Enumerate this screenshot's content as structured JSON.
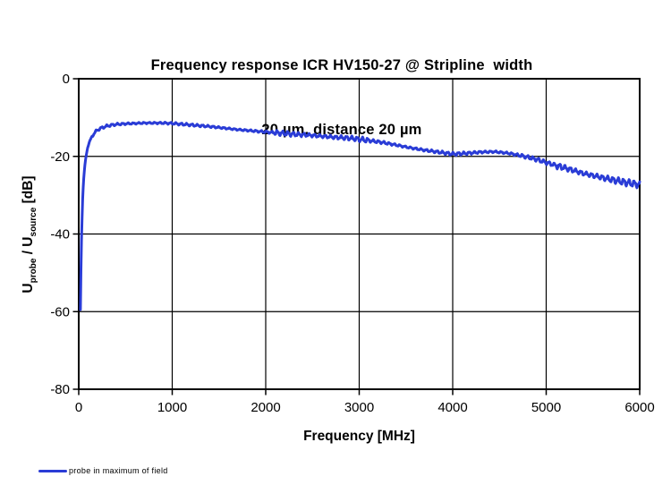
{
  "title": {
    "line1": "Frequency response ICR HV150-27 @ Stripline  width",
    "line2": "20 µm, distance 20 µm"
  },
  "y_axis": {
    "label_parts": {
      "u1": "U",
      "sub1": "probe",
      "mid": " / U",
      "sub2": "source",
      "unit": " [dB]"
    },
    "ticks": [
      0,
      -20,
      -40,
      -60,
      -80
    ]
  },
  "x_axis": {
    "label": "Frequency [MHz]",
    "ticks": [
      0,
      1000,
      2000,
      3000,
      4000,
      5000,
      6000
    ]
  },
  "legend": {
    "items": [
      {
        "label": "probe in maximum of field",
        "color": "#2a3cd6"
      }
    ]
  },
  "colors": {
    "line": "#2a3cd6",
    "axis": "#000000",
    "grid": "#000000",
    "background": "#ffffff"
  },
  "chart_data": {
    "type": "line",
    "title": "Frequency response ICR HV150-27 @ Stripline width 20 µm, distance 20 µm",
    "xlabel": "Frequency [MHz]",
    "ylabel": "Uprobe / Usource [dB]",
    "xlim": [
      0,
      6000
    ],
    "ylim": [
      -80,
      0
    ],
    "x_ticks": [
      0,
      1000,
      2000,
      3000,
      4000,
      5000,
      6000
    ],
    "y_ticks": [
      0,
      -20,
      -40,
      -60,
      -80
    ],
    "grid": true,
    "legend_position": "bottom-left",
    "series": [
      {
        "name": "probe in maximum of field",
        "color": "#2a3cd6",
        "points": [
          [
            18,
            -59.5
          ],
          [
            22,
            -52
          ],
          [
            27,
            -45
          ],
          [
            33,
            -38
          ],
          [
            40,
            -32
          ],
          [
            50,
            -27
          ],
          [
            62,
            -23
          ],
          [
            78,
            -20
          ],
          [
            95,
            -17.8
          ],
          [
            115,
            -16.2
          ],
          [
            140,
            -14.9
          ],
          [
            170,
            -13.9
          ],
          [
            200,
            -13.2
          ],
          [
            250,
            -12.6
          ],
          [
            300,
            -12.2
          ],
          [
            360,
            -11.9
          ],
          [
            430,
            -11.7
          ],
          [
            500,
            -11.6
          ],
          [
            600,
            -11.5
          ],
          [
            700,
            -11.4
          ],
          [
            800,
            -11.4
          ],
          [
            900,
            -11.4
          ],
          [
            1000,
            -11.5
          ],
          [
            1100,
            -11.7
          ],
          [
            1250,
            -12.0
          ],
          [
            1400,
            -12.3
          ],
          [
            1550,
            -12.7
          ],
          [
            1700,
            -13.1
          ],
          [
            1850,
            -13.4
          ],
          [
            2000,
            -13.7
          ],
          [
            2150,
            -14.0
          ],
          [
            2300,
            -14.3
          ],
          [
            2450,
            -14.5
          ],
          [
            2600,
            -14.8
          ],
          [
            2750,
            -15.1
          ],
          [
            2900,
            -15.3
          ],
          [
            3000,
            -15.6
          ],
          [
            3100,
            -15.9
          ],
          [
            3250,
            -16.4
          ],
          [
            3400,
            -17.1
          ],
          [
            3550,
            -17.8
          ],
          [
            3700,
            -18.4
          ],
          [
            3850,
            -18.9
          ],
          [
            4000,
            -19.4
          ],
          [
            4150,
            -19.2
          ],
          [
            4300,
            -18.9
          ],
          [
            4450,
            -18.8
          ],
          [
            4600,
            -19.2
          ],
          [
            4750,
            -19.9
          ],
          [
            4900,
            -20.8
          ],
          [
            5000,
            -21.6
          ],
          [
            5100,
            -22.3
          ],
          [
            5250,
            -23.3
          ],
          [
            5400,
            -24.4
          ],
          [
            5550,
            -25.2
          ],
          [
            5700,
            -26.0
          ],
          [
            5850,
            -26.7
          ],
          [
            6000,
            -27.3
          ]
        ],
        "ripple": {
          "period_mhz": 57,
          "amplitude_segments": [
            [
              0,
              0.05
            ],
            [
              150,
              0.35
            ],
            [
              2100,
              0.7
            ],
            [
              3100,
              0.45
            ],
            [
              4700,
              0.55
            ],
            [
              5100,
              0.95
            ]
          ]
        }
      }
    ]
  }
}
